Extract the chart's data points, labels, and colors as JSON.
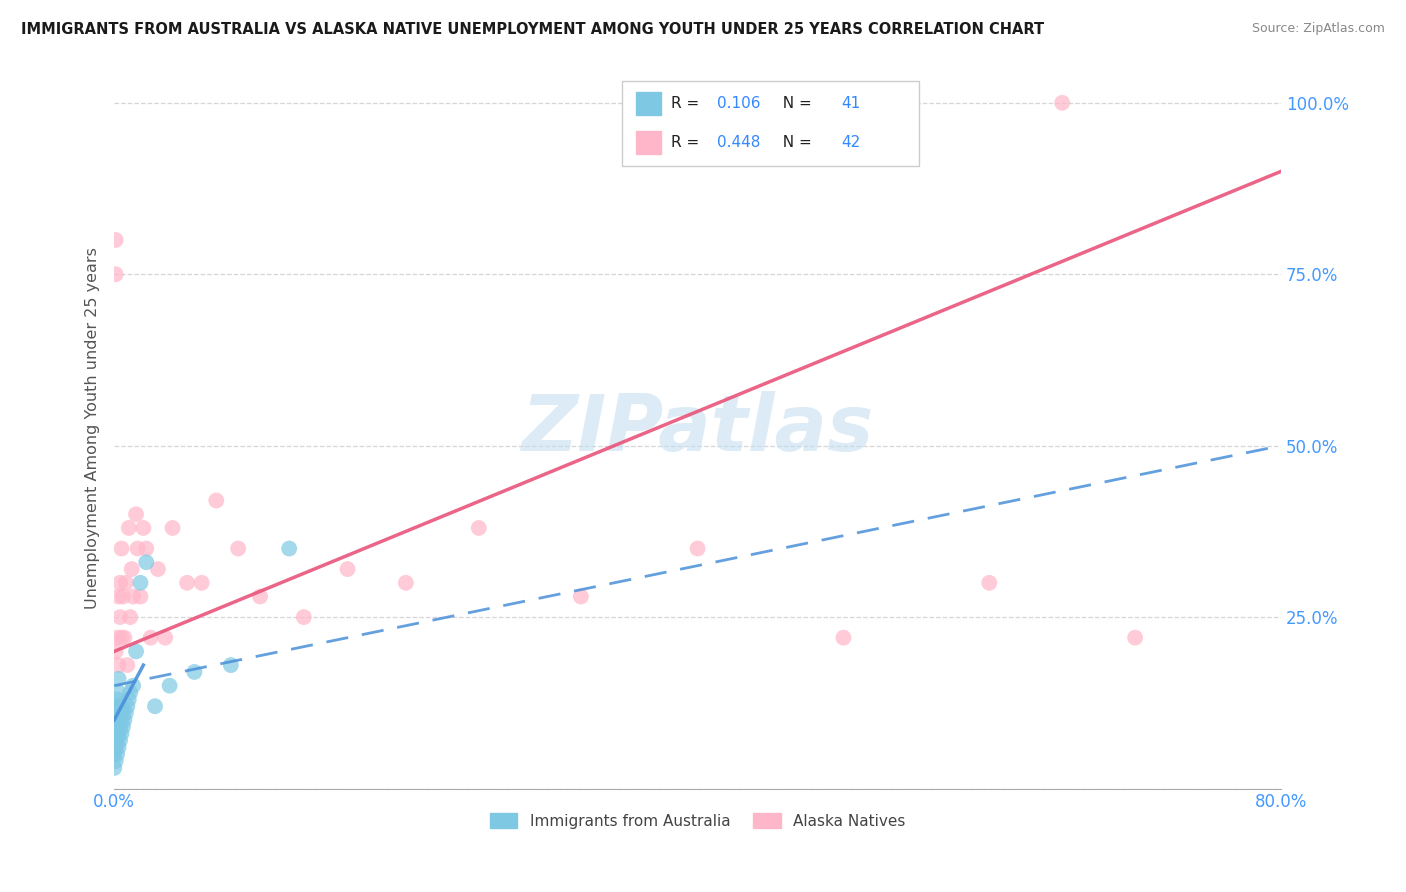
{
  "title": "IMMIGRANTS FROM AUSTRALIA VS ALASKA NATIVE UNEMPLOYMENT AMONG YOUTH UNDER 25 YEARS CORRELATION CHART",
  "source": "Source: ZipAtlas.com",
  "ylabel": "Unemployment Among Youth under 25 years",
  "legend_label1": "Immigrants from Australia",
  "legend_label2": "Alaska Natives",
  "r1": 0.106,
  "n1": 41,
  "r2": 0.448,
  "n2": 42,
  "xmin": 0.0,
  "xmax": 0.8,
  "ymin": 0.0,
  "ymax": 1.05,
  "yticks": [
    0.0,
    0.25,
    0.5,
    0.75,
    1.0
  ],
  "ytick_labels": [
    "",
    "25.0%",
    "50.0%",
    "75.0%",
    "100.0%"
  ],
  "color_blue": "#7ec8e3",
  "color_pink": "#ffb6c8",
  "line_blue": "#4a90d9",
  "line_pink": "#e8547a",
  "watermark_color": "#c5dff0",
  "bg_color": "#ffffff",
  "grid_color": "#cccccc",
  "blue_scatter_x": [
    0.0,
    0.0,
    0.0,
    0.001,
    0.001,
    0.001,
    0.001,
    0.001,
    0.002,
    0.002,
    0.002,
    0.002,
    0.002,
    0.003,
    0.003,
    0.003,
    0.003,
    0.003,
    0.003,
    0.004,
    0.004,
    0.004,
    0.005,
    0.005,
    0.005,
    0.006,
    0.006,
    0.007,
    0.008,
    0.009,
    0.01,
    0.011,
    0.013,
    0.015,
    0.018,
    0.022,
    0.028,
    0.038,
    0.055,
    0.08,
    0.12
  ],
  "blue_scatter_y": [
    0.03,
    0.05,
    0.07,
    0.04,
    0.06,
    0.08,
    0.1,
    0.12,
    0.05,
    0.07,
    0.09,
    0.11,
    0.13,
    0.06,
    0.08,
    0.1,
    0.12,
    0.14,
    0.16,
    0.07,
    0.09,
    0.11,
    0.08,
    0.1,
    0.12,
    0.09,
    0.11,
    0.1,
    0.11,
    0.12,
    0.13,
    0.14,
    0.15,
    0.2,
    0.3,
    0.33,
    0.12,
    0.15,
    0.17,
    0.18,
    0.35
  ],
  "pink_scatter_x": [
    0.001,
    0.001,
    0.002,
    0.003,
    0.003,
    0.004,
    0.004,
    0.005,
    0.005,
    0.006,
    0.007,
    0.008,
    0.009,
    0.01,
    0.011,
    0.012,
    0.013,
    0.015,
    0.016,
    0.018,
    0.02,
    0.022,
    0.025,
    0.03,
    0.035,
    0.04,
    0.05,
    0.06,
    0.07,
    0.085,
    0.1,
    0.13,
    0.16,
    0.2,
    0.25,
    0.32,
    0.4,
    0.5,
    0.6,
    0.7,
    0.001,
    0.65
  ],
  "pink_scatter_y": [
    0.8,
    0.2,
    0.22,
    0.18,
    0.28,
    0.25,
    0.3,
    0.22,
    0.35,
    0.28,
    0.22,
    0.3,
    0.18,
    0.38,
    0.25,
    0.32,
    0.28,
    0.4,
    0.35,
    0.28,
    0.38,
    0.35,
    0.22,
    0.32,
    0.22,
    0.38,
    0.3,
    0.3,
    0.42,
    0.35,
    0.28,
    0.25,
    0.32,
    0.3,
    0.38,
    0.28,
    0.35,
    0.22,
    0.3,
    0.22,
    0.75,
    1.0
  ],
  "blue_line_x0": 0.0,
  "blue_line_x1": 0.8,
  "blue_line_y0": 0.15,
  "blue_line_y1": 0.5,
  "pink_line_x0": 0.0,
  "pink_line_x1": 0.8,
  "pink_line_y0": 0.2,
  "pink_line_y1": 0.9
}
